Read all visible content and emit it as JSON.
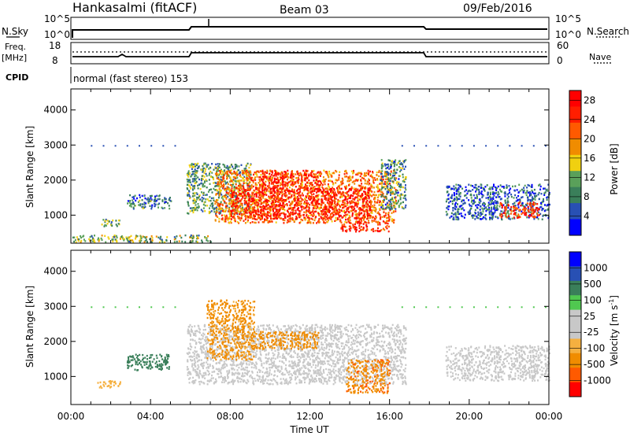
{
  "header": {
    "title": "Hankasalmi (fitACF)",
    "beam": "Beam 03",
    "date": "09/Feb/2016"
  },
  "top_panel": {
    "left_label": "N.Sky",
    "left_ticks": [
      "10^5",
      "10^0"
    ],
    "right_ticks": [
      "10^5",
      "10^0"
    ],
    "right_label": "N.Search"
  },
  "freq_panel": {
    "left_label_1": "Freq.",
    "left_label_2": "[MHz]",
    "left_ticks": [
      "18",
      "8"
    ],
    "right_ticks": [
      "60",
      "0"
    ],
    "right_label": "Nave"
  },
  "cpid_panel": {
    "label": "CPID",
    "text": "normal (fast stereo) 153"
  },
  "colors": {
    "power_scale": [
      "#0000ff",
      "#2850b4",
      "#3a7f5a",
      "#5aa05a",
      "#f0d010",
      "#f08c00",
      "#ff5a00",
      "#ff1e00",
      "#ff0000"
    ],
    "velocity_scale": [
      "#ff0000",
      "#ff5a00",
      "#f08c00",
      "#f5b040",
      "#c8c8c8",
      "#c8c8c8",
      "#50c850",
      "#3a7f5a",
      "#2850b4",
      "#0000ff"
    ]
  },
  "chart_data": [
    {
      "type": "heatmap",
      "name": "power",
      "ylabel": "Slant Range [km]",
      "yticks": [
        "1000",
        "2000",
        "3000",
        "4000"
      ],
      "ylim": [
        200,
        4600
      ],
      "x_range_hours": [
        0,
        24
      ],
      "colorbar_label": "Power [dB]",
      "colorbar_ticks": [
        "4",
        "8",
        "12",
        "16",
        "20",
        "24",
        "28"
      ],
      "colorbar_range": [
        0,
        30
      ],
      "regions": [
        {
          "t0": 5.8,
          "t1": 9.0,
          "r0": 1050,
          "r1": 2500,
          "v": 10
        },
        {
          "t0": 7.2,
          "t1": 16.3,
          "r0": 800,
          "r1": 2300,
          "v": 20
        },
        {
          "t0": 8.0,
          "t1": 15.0,
          "r0": 900,
          "r1": 1800,
          "v": 27
        },
        {
          "t0": 9.5,
          "t1": 12.5,
          "r0": 1700,
          "r1": 2300,
          "v": 26
        },
        {
          "t0": 13.5,
          "t1": 16.0,
          "r0": 550,
          "r1": 850,
          "v": 25
        },
        {
          "t0": 15.5,
          "t1": 16.8,
          "r0": 1200,
          "r1": 2600,
          "v": 9
        },
        {
          "t0": 18.8,
          "t1": 24.0,
          "r0": 900,
          "r1": 1900,
          "v": 6
        },
        {
          "t0": 21.5,
          "t1": 23.5,
          "r0": 950,
          "r1": 1400,
          "v": 24
        },
        {
          "t0": 2.8,
          "t1": 5.0,
          "r0": 1200,
          "r1": 1600,
          "v": 8
        },
        {
          "t0": 1.5,
          "t1": 2.5,
          "r0": 700,
          "r1": 900,
          "v": 10
        },
        {
          "t0": 0.0,
          "t1": 7.0,
          "r0": 250,
          "r1": 450,
          "v": 12
        }
      ]
    },
    {
      "type": "heatmap",
      "name": "velocity",
      "ylabel": "Slant Range [km]",
      "yticks": [
        "1000",
        "2000",
        "3000",
        "4000"
      ],
      "ylim": [
        200,
        4600
      ],
      "x_range_hours": [
        0,
        24
      ],
      "xticks": [
        "00:00",
        "04:00",
        "08:00",
        "12:00",
        "16:00",
        "20:00",
        "00:00"
      ],
      "xlabel": "Time UT",
      "colorbar_label": "Velocity [m s",
      "colorbar_label_sup": "-1",
      "colorbar_label_end": "]",
      "colorbar_ticks": [
        "1000",
        "500",
        "100",
        "25",
        "-25",
        "-100",
        "-500",
        "-1000"
      ],
      "regions": [
        {
          "t0": 5.8,
          "t1": 16.8,
          "r0": 800,
          "r1": 2500,
          "v": 0
        },
        {
          "t0": 6.8,
          "t1": 9.2,
          "r0": 1500,
          "r1": 3200,
          "v": -150
        },
        {
          "t0": 9.0,
          "t1": 12.5,
          "r0": 1800,
          "r1": 2300,
          "v": -300
        },
        {
          "t0": 13.8,
          "t1": 16.0,
          "r0": 550,
          "r1": 1500,
          "v": -400
        },
        {
          "t0": 18.8,
          "t1": 24.0,
          "r0": 900,
          "r1": 1900,
          "v": 0
        },
        {
          "t0": 2.8,
          "t1": 5.0,
          "r0": 1200,
          "r1": 1650,
          "v": 200
        },
        {
          "t0": 1.3,
          "t1": 2.5,
          "r0": 700,
          "r1": 900,
          "v": -60
        }
      ]
    }
  ]
}
